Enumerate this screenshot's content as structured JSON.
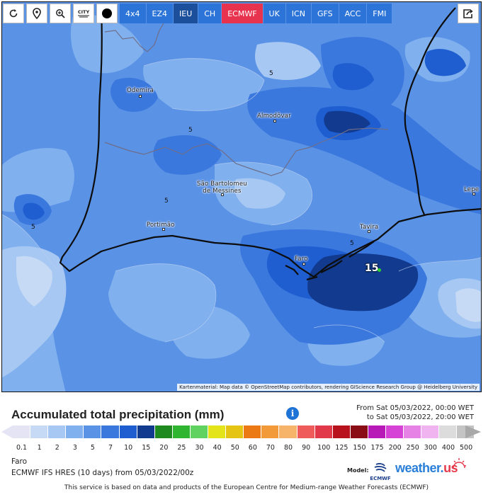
{
  "toolbar": {
    "buttons": [
      {
        "name": "refresh",
        "glyph": "↻"
      },
      {
        "name": "location",
        "glyph": "⌖"
      },
      {
        "name": "zoom",
        "glyph": "⊕"
      },
      {
        "name": "city",
        "glyph": "CITY"
      },
      {
        "name": "dot",
        "glyph": "●"
      }
    ],
    "model_tabs": [
      {
        "label": "4x4",
        "state": "normal"
      },
      {
        "label": "EZ4",
        "state": "normal"
      },
      {
        "label": "IEU",
        "state": "dark"
      },
      {
        "label": "CH",
        "state": "normal"
      },
      {
        "label": "ECMWF",
        "state": "active"
      },
      {
        "label": "UK",
        "state": "normal"
      },
      {
        "label": "ICN",
        "state": "normal"
      },
      {
        "label": "GFS",
        "state": "normal"
      },
      {
        "label": "ACC",
        "state": "normal"
      },
      {
        "label": "FMI",
        "state": "normal"
      }
    ],
    "share_icon": "share-icon"
  },
  "map": {
    "places": [
      {
        "name": "Odemira"
      },
      {
        "name": "Almodôvar"
      },
      {
        "name": "São Bartolomeu\nde Messines"
      },
      {
        "name": "Portimão"
      },
      {
        "name": "Faro"
      },
      {
        "name": "Tavira"
      },
      {
        "name": "Lepe"
      }
    ],
    "contour_labels": [
      "5",
      "5",
      "5",
      "5",
      "5"
    ],
    "max_value": "15",
    "attribution": "Kartenmaterial: Map data © OpenStreetMap contributors, rendering GIScience Research Group @ Heidelberg University"
  },
  "legend": {
    "title": "Accumulated total precipitation (mm)",
    "from": "From Sat 05/03/2022, 00:00 WET",
    "to": "to Sat 05/03/2022, 20:00 WET",
    "scale": [
      {
        "value": "0.1",
        "color": "#e4e4f4"
      },
      {
        "value": "1",
        "color": "#c6daf5"
      },
      {
        "value": "2",
        "color": "#a7c8f3"
      },
      {
        "value": "3",
        "color": "#80b1ee"
      },
      {
        "value": "5",
        "color": "#5a92e6"
      },
      {
        "value": "7",
        "color": "#3b78de"
      },
      {
        "value": "10",
        "color": "#1e5ed0"
      },
      {
        "value": "15",
        "color": "#123a8e"
      },
      {
        "value": "20",
        "color": "#1f8a1f"
      },
      {
        "value": "25",
        "color": "#2fb52f"
      },
      {
        "value": "30",
        "color": "#5fd25f"
      },
      {
        "value": "40",
        "color": "#e4e41a"
      },
      {
        "value": "50",
        "color": "#e6c414"
      },
      {
        "value": "60",
        "color": "#ec7a14"
      },
      {
        "value": "70",
        "color": "#f29a3a"
      },
      {
        "value": "80",
        "color": "#f5b46a"
      },
      {
        "value": "90",
        "color": "#ef5a5a"
      },
      {
        "value": "100",
        "color": "#e2394a"
      },
      {
        "value": "125",
        "color": "#b8121e"
      },
      {
        "value": "150",
        "color": "#8a0c14"
      },
      {
        "value": "175",
        "color": "#b81ab8"
      },
      {
        "value": "200",
        "color": "#d642d6"
      },
      {
        "value": "250",
        "color": "#e682e6"
      },
      {
        "value": "300",
        "color": "#f0b4f0"
      },
      {
        "value": "400",
        "color": "#dcdcdc"
      },
      {
        "value": "500",
        "color": "#c4c4c4"
      }
    ]
  },
  "footer": {
    "location": "Faro",
    "model_info": "ECMWF IFS HRES (10 days) from 05/03/2022/00z",
    "model_label": "Model:",
    "ecmwf_text": "ECMWF",
    "brand": "weather",
    "brand_suffix": "us",
    "disclaimer": "This service is based on data and products of the European Centre for Medium-range Weather Forecasts (ECMWF)"
  }
}
